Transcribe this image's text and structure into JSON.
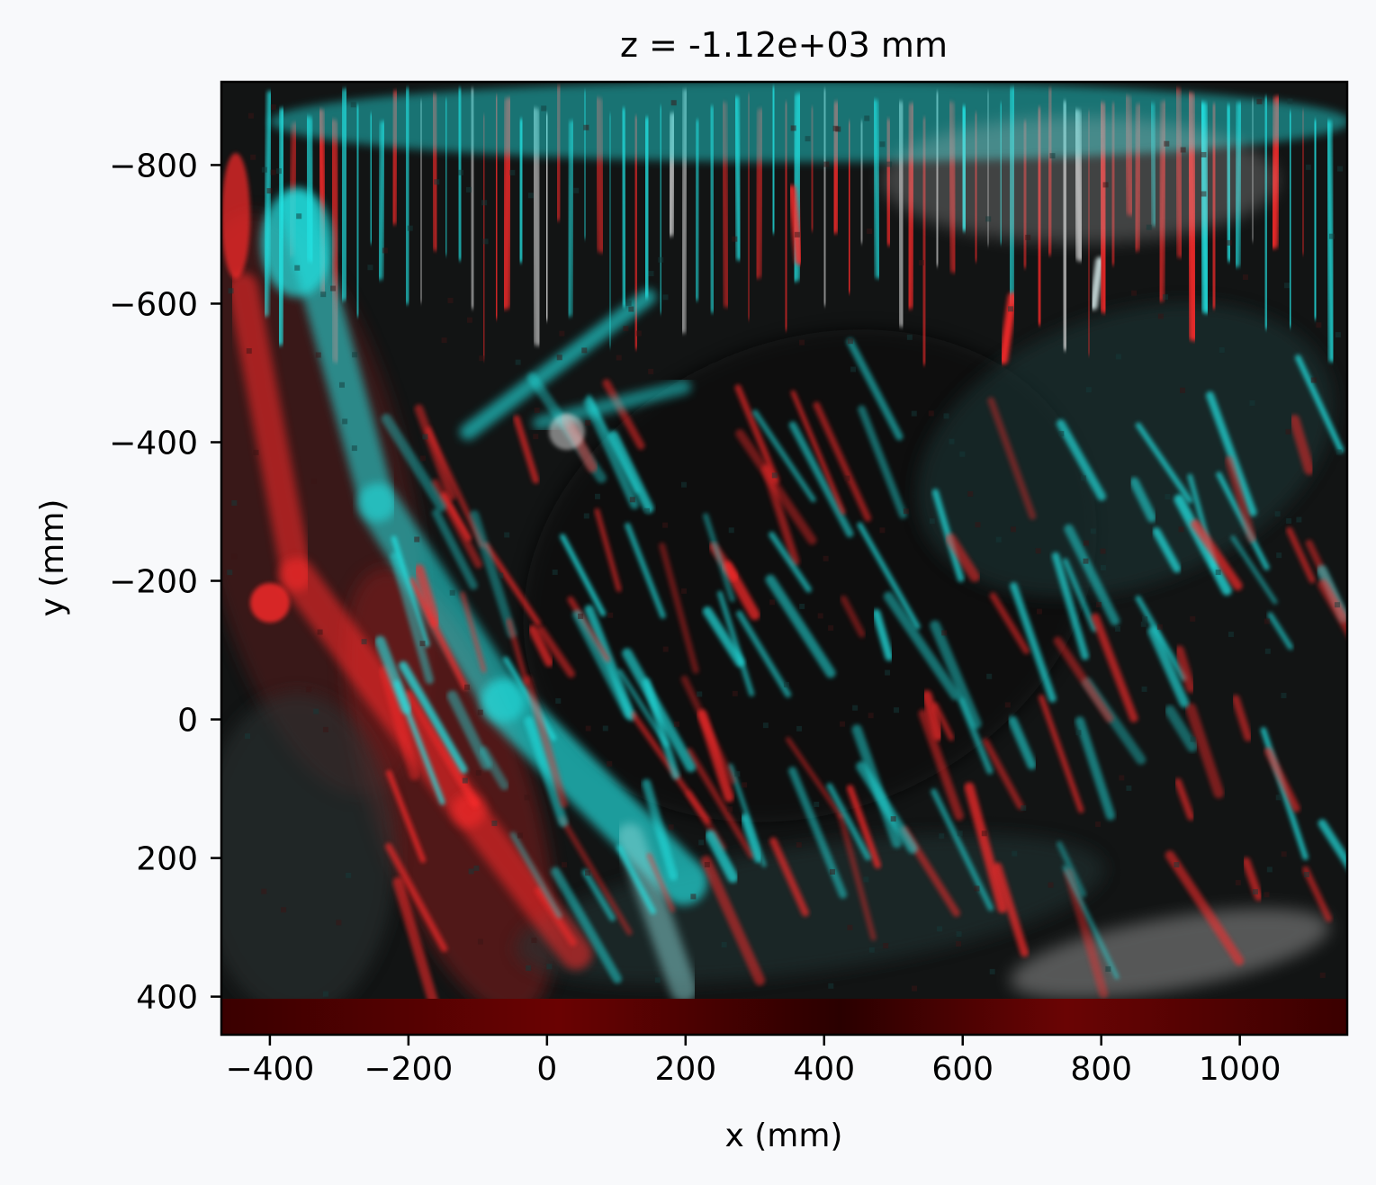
{
  "chart_data": {
    "type": "heatmap",
    "title": "z = -1.12e+03 mm",
    "xlabel": "x (mm)",
    "ylabel": "y (mm)",
    "xlim": [
      -470,
      1155
    ],
    "ylim": [
      -920,
      455
    ],
    "y_inverted": true,
    "x_ticks": [
      {
        "value": -400,
        "label": "−400"
      },
      {
        "value": -200,
        "label": "−200"
      },
      {
        "value": 0,
        "label": "0"
      },
      {
        "value": 200,
        "label": "200"
      },
      {
        "value": 400,
        "label": "400"
      },
      {
        "value": 600,
        "label": "600"
      },
      {
        "value": 800,
        "label": "800"
      },
      {
        "value": 1000,
        "label": "1000"
      }
    ],
    "y_ticks": [
      {
        "value": -800,
        "label": "−800"
      },
      {
        "value": -600,
        "label": "−600"
      },
      {
        "value": -400,
        "label": "−400"
      },
      {
        "value": -200,
        "label": "−200"
      },
      {
        "value": 0,
        "label": "0"
      },
      {
        "value": 200,
        "label": "200"
      },
      {
        "value": 400,
        "label": "400"
      }
    ],
    "colormap": "red-cyan anaglyph overlay",
    "colors": {
      "channel_a": "#ff2a2a",
      "channel_b": "#22e6e6",
      "background": "#0d0c0c",
      "bottom_band": "#5a0000"
    },
    "grid": false
  }
}
